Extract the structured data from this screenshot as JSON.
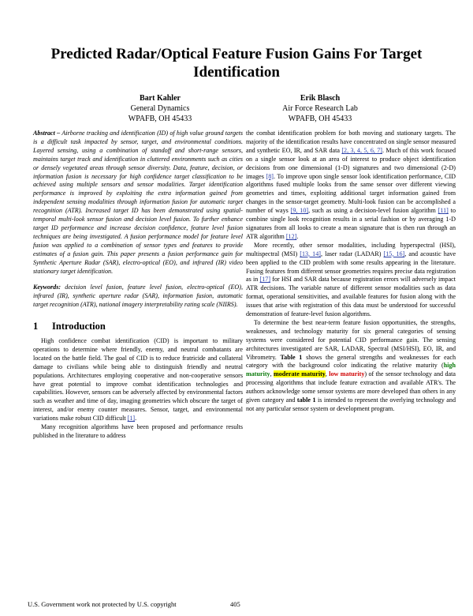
{
  "title": "Predicted Radar/Optical Feature Fusion Gains For Target Identification",
  "authors": [
    {
      "name": "Bart Kahler",
      "org": "General Dynamics",
      "addr": "WPAFB, OH 45433"
    },
    {
      "name": "Erik Blasch",
      "org": "Air Force Research Lab",
      "addr": "WPAFB, OH 45433"
    }
  ],
  "abstract_label": "Abstract –",
  "abstract_text": "Airborne tracking and identification (ID) of high value ground targets is a difficult task impacted by sensor, target, and environmental conditions. Layered sensing, using a combination of standoff and short-range sensors, maintains target track and identification in cluttered environments such as cities or densely vegetated areas through sensor diversity. Data, feature, decision, or information fusion is necessary for high confidence target classification to be achieved using multiple sensors and sensor modalities. Target identification performance is improved by exploiting the extra information gained from independent sensing modalities through information fusion for automatic target recognition (ATR). Increased target ID has been demonstrated using spatial-temporal multi-look sensor fusion and decision level fusion. To further enhance target ID performance and increase decision confidence, feature level fusion techniques are being investigated. A fusion performance model for feature level fusion was applied to a combination of sensor types and features to provide estimates of a fusion gain. This paper presents a fusion performance gain for Synthetic Aperture Radar (SAR), electro-optical (EO), and infrared (IR) video stationary target identification.",
  "keywords_label": "Keywords:",
  "keywords_text": "decision level fusion, feature level fusion, electro-optical (EO), infrared (IR), synthetic aperture radar (SAR), information fusion, automatic target recognition (ATR), national imagery interpretability rating scale (NIIRS).",
  "section": {
    "num": "1",
    "title": "Introduction"
  },
  "intro_p1": "High confidence combat identification (CID) is important to military operations to determine where friendly, enemy, and neutral combatants are located on the battle field. The goal of CID is to reduce fratricide and collateral damage to civilians while being able to distinguish friendly and neutral populations. Architectures employing cooperative and non-cooperative sensors have great potential to improve combat identification technologies and capabilities. However, sensors can be adversely affected by environmental factors such as weather and time of day, imaging geometries which obscure the target of interest, and/or enemy counter measures. Sensor, target, and environmental variations make robust CID difficult",
  "intro_p1_cite": "[1]",
  "intro_p2": "Many recognition algorithms have been proposed and performance results published in the literature to address",
  "r1a": "the combat identification problem for both moving and stationary targets. The majority of the identification results have concentrated on single sensor measured and synthetic EO, IR, and SAR data",
  "r1_cite1": "[2, 3, 4, 5, 6, 7]",
  "r1b": ". Much of this work focused on a single sensor look at an area of interest to produce object identification decisions from one dimensional (1-D) signatures and two dimensional (2-D) images",
  "r1_cite2": "[8]",
  "r1c": ". To improve upon single sensor look identification performance, CID algorithms fused multiple looks from the same sensor over different viewing geometries and times, exploiting additional target information gained from changes in the sensor-target geometry. Multi-look fusion can be accomplished a number of ways",
  "r1_cite3": "[9, 10]",
  "r1d": ", such as using a decision-level fusion algorithm",
  "r1_cite4": "[11]",
  "r1e": "to combine single look recognition results in a serial fashion or by averaging 1-D signatures from all looks to create a mean signature that is then run through an ATR algorithm",
  "r1_cite5": "[12]",
  "r1f": ".",
  "r2a": "More recently, other sensor modalities, including hyperspectral (HSI), multispectral (MSI)",
  "r2_cite1": "[13, 14]",
  "r2b": ", laser radar (LADAR)",
  "r2_cite2": "[15, 16]",
  "r2c": ", and acoustic have been applied to the CID problem with some results appearing in the literature. Fusing features from different sensor geometries requires precise data registration as in",
  "r2_cite3": "[17]",
  "r2d": "for HSI and SAR data because registration errors will adversely impact ATR decisions. The variable nature of different sensor modalities such as data format, operational sensitivities, and available features for fusion along with the issues that arise with registration of this data must be understood for successful demonstration of feature-level fusion algorithms.",
  "r3a": "To determine the best near-term feature fusion opportunities, the strengths, weaknesses, and technology maturity for six general categories of sensing systems were considered for potential CID performance gain. The sensing architectures investigated are SAR, LADAR, Spectral (MSI/HSI), EO, IR, and Vibrometry.",
  "r3_table": "Table 1",
  "r3b": "shows the general strengths and weaknesses for each category with the background color indicating the relative maturity (",
  "mat_high": "high maturity",
  "sep1": ", ",
  "mat_mod": "moderate maturity",
  "sep2": ", ",
  "mat_low": "low maturity",
  "r3c": ") of the sensor technology and data processing algorithms that include feature extraction and available ATR's. The authors acknowledge some sensor systems are more developed than others in any given category and",
  "r3_table2": "table 1",
  "r3d": "is intended to represent the overlying technology and not any particular sensor system or development program.",
  "footer_left": "U.S. Government work not protected by U.S. copyright",
  "footer_page": "405",
  "colors": {
    "citation": "#2a3fa8",
    "high": "#0a7a0a",
    "moderate_bg": "#ffff00",
    "low": "#d00000"
  }
}
